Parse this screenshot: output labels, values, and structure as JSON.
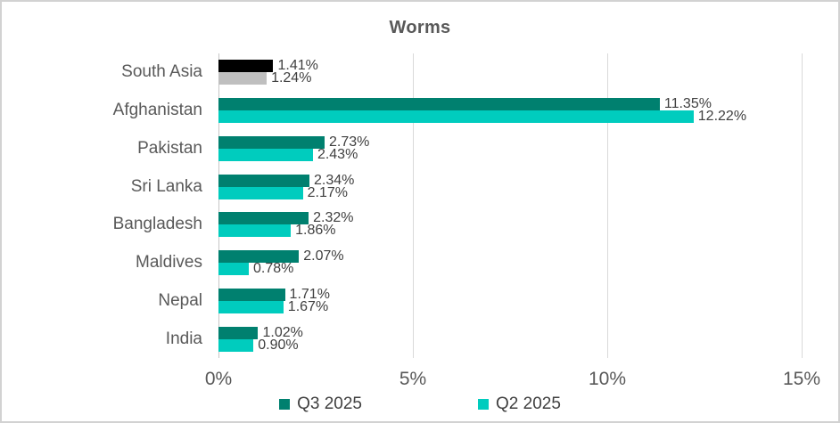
{
  "chart_data": {
    "type": "bar",
    "orientation": "horizontal",
    "title": "Worms",
    "categories": [
      "South Asia",
      "Afghanistan",
      "Pakistan",
      "Sri Lanka",
      "Bangladesh",
      "Maldives",
      "Nepal",
      "India"
    ],
    "series": [
      {
        "name": "Q3 2025",
        "color": "#00806F",
        "values": [
          1.41,
          11.35,
          2.73,
          2.34,
          2.32,
          2.07,
          1.71,
          1.02
        ],
        "labels": [
          "1.41%",
          "11.35%",
          "2.73%",
          "2.34%",
          "2.32%",
          "2.07%",
          "1.71%",
          "1.02%"
        ],
        "category_color_overrides": {
          "South Asia": "#000000"
        }
      },
      {
        "name": "Q2 2025",
        "color": "#00CCBE",
        "values": [
          1.24,
          12.22,
          2.43,
          2.17,
          1.86,
          0.78,
          1.67,
          0.9
        ],
        "labels": [
          "1.24%",
          "12.22%",
          "2.43%",
          "2.17%",
          "1.86%",
          "0.78%",
          "1.67%",
          "0.90%"
        ],
        "category_color_overrides": {
          "South Asia": "#BFBFBF"
        }
      }
    ],
    "x_axis": {
      "max": 15,
      "ticks": [
        {
          "value": 0,
          "label": "0%"
        },
        {
          "value": 5,
          "label": "5%"
        },
        {
          "value": 10,
          "label": "10%"
        },
        {
          "value": 15,
          "label": "15%"
        }
      ]
    },
    "grid": true,
    "legend_position": "bottom",
    "value_labels": true
  }
}
